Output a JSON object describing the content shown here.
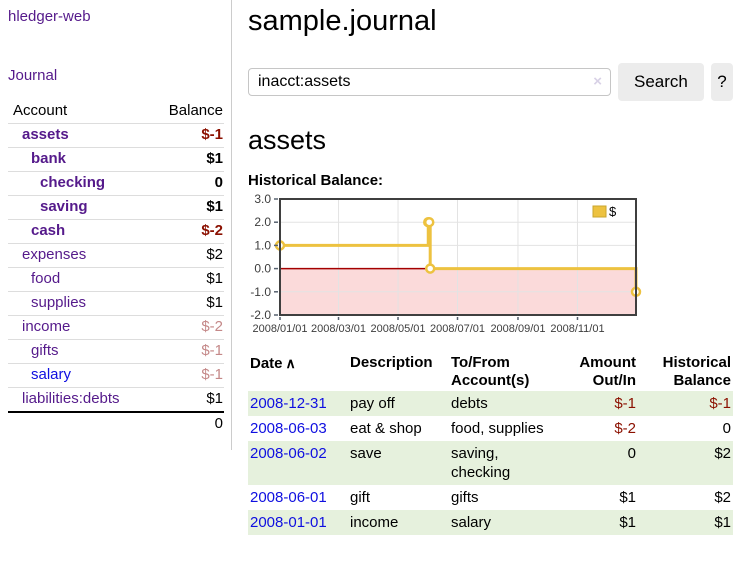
{
  "colors": {
    "link_purple": "#551a8b",
    "link_blue": "#0f0fe0",
    "negative_strong": "#8b1000",
    "negative_soft": "#c48888",
    "row_green": "#e6f1dd",
    "series_gold": "#edc240",
    "negative_region_pink": "#fbdada",
    "zero_line_red": "#a40000"
  },
  "sidebar": {
    "brand": "hledger-web",
    "journal_link": "Journal",
    "accounts_table": {
      "headers": {
        "account": "Account",
        "balance": "Balance"
      },
      "rows": [
        {
          "account": "assets",
          "balance": "$-1",
          "level": 1,
          "bold": true,
          "link": "purple",
          "balance_style": "neg-strong"
        },
        {
          "account": "bank",
          "balance": "$1",
          "level": 2,
          "bold": true,
          "link": "purple",
          "balance_style": "plain"
        },
        {
          "account": "checking",
          "balance": "0",
          "level": 3,
          "bold": true,
          "link": "purple",
          "balance_style": "plain"
        },
        {
          "account": "saving",
          "balance": "$1",
          "level": 3,
          "bold": true,
          "link": "purple",
          "balance_style": "plain"
        },
        {
          "account": "cash",
          "balance": "$-2",
          "level": 2,
          "bold": true,
          "link": "purple",
          "balance_style": "neg-strong"
        },
        {
          "account": "expenses",
          "balance": "$2",
          "level": 1,
          "bold": false,
          "link": "purple",
          "balance_style": "plain"
        },
        {
          "account": "food",
          "balance": "$1",
          "level": 2,
          "bold": false,
          "link": "purple",
          "balance_style": "plain"
        },
        {
          "account": "supplies",
          "balance": "$1",
          "level": 2,
          "bold": false,
          "link": "purple",
          "balance_style": "plain"
        },
        {
          "account": "income",
          "balance": "$-2",
          "level": 1,
          "bold": false,
          "link": "purple",
          "balance_style": "neg-soft"
        },
        {
          "account": "gifts",
          "balance": "$-1",
          "level": 2,
          "bold": false,
          "link": "purple",
          "balance_style": "neg-soft"
        },
        {
          "account": "salary",
          "balance": "$-1",
          "level": 2,
          "bold": false,
          "link": "blue",
          "balance_style": "neg-soft"
        },
        {
          "account": "liabilities:debts",
          "balance": "$1",
          "level": 1,
          "bold": false,
          "link": "purple",
          "balance_style": "plain"
        }
      ],
      "total": "0"
    }
  },
  "main": {
    "title": "sample.journal",
    "search": {
      "value": "inacct:assets",
      "clear_icon": "×",
      "search_button": "Search",
      "help_button": "?"
    },
    "account_heading": "assets",
    "chart_heading": "Historical Balance:"
  },
  "chart_data": {
    "type": "line",
    "step": true,
    "title": "Historical Balance",
    "x_domain": [
      "2008-01-01",
      "2008-12-31"
    ],
    "x_ticks": [
      {
        "date": "2008-01-01",
        "label": "2008/01/01"
      },
      {
        "date": "2008-03-01",
        "label": "2008/03/01"
      },
      {
        "date": "2008-05-01",
        "label": "2008/05/01"
      },
      {
        "date": "2008-07-01",
        "label": "2008/07/01"
      },
      {
        "date": "2008-09-01",
        "label": "2008/09/01"
      },
      {
        "date": "2008-11-01",
        "label": "2008/11/01"
      }
    ],
    "y_ticks": [
      3.0,
      2.0,
      1.0,
      0.0,
      -1.0,
      -2.0
    ],
    "ylim": [
      -2.0,
      3.0
    ],
    "grid": true,
    "negative_region": true,
    "legend_position": "top-right",
    "series": [
      {
        "name": "$",
        "color": "#edc240",
        "points": [
          [
            "2008-01-01",
            1
          ],
          [
            "2008-06-01",
            2
          ],
          [
            "2008-06-02",
            2
          ],
          [
            "2008-06-03",
            0
          ],
          [
            "2008-12-31",
            -1
          ]
        ]
      }
    ]
  },
  "register": {
    "headers": {
      "date": "Date",
      "sort_indicator": "∧",
      "description": "Description",
      "accounts_line1": "To/From",
      "accounts_line2": "Account(s)",
      "amount_line1": "Amount",
      "amount_line2": "Out/In",
      "balance_line1": "Historical",
      "balance_line2": "Balance"
    },
    "rows": [
      {
        "date": "2008-12-31",
        "description": "pay off",
        "accounts": "debts",
        "amount": "$-1",
        "amount_style": "neg-strong",
        "balance": "$-1",
        "balance_style": "neg-strong"
      },
      {
        "date": "2008-06-03",
        "description": "eat & shop",
        "accounts": "food, supplies",
        "amount": "$-2",
        "amount_style": "neg-strong",
        "balance": "0",
        "balance_style": "plain"
      },
      {
        "date": "2008-06-02",
        "description": "save",
        "accounts": "saving, checking",
        "amount": "0",
        "amount_style": "plain",
        "balance": "$2",
        "balance_style": "plain"
      },
      {
        "date": "2008-06-01",
        "description": "gift",
        "accounts": "gifts",
        "amount": "$1",
        "amount_style": "plain",
        "balance": "$2",
        "balance_style": "plain"
      },
      {
        "date": "2008-01-01",
        "description": "income",
        "accounts": "salary",
        "amount": "$1",
        "amount_style": "plain",
        "balance": "$1",
        "balance_style": "plain"
      }
    ]
  }
}
